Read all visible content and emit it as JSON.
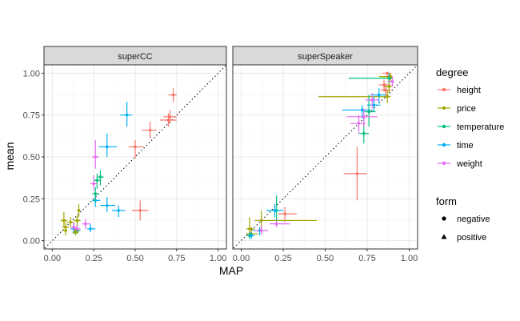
{
  "chart_data": {
    "type": "scatter",
    "xlabel": "MAP",
    "ylabel": "mean",
    "xlim": [
      0,
      1
    ],
    "ylim": [
      0,
      1
    ],
    "x_ticks": [
      "0.00",
      "0.25",
      "0.50",
      "0.75",
      "1.00"
    ],
    "y_ticks": [
      "0.00",
      "0.25",
      "0.50",
      "0.75",
      "1.00"
    ],
    "reference_line": "identity (dotted)",
    "grid": true,
    "legend_placement": "right",
    "legend_color_title": "degree",
    "legend_shape_title": "form",
    "shape_legend": [
      "negative",
      "positive"
    ],
    "series": [
      {
        "name": "height",
        "color": "#F8766D"
      },
      {
        "name": "price",
        "color": "#A3A500"
      },
      {
        "name": "temperature",
        "color": "#00BF7D"
      },
      {
        "name": "time",
        "color": "#00B0F6"
      },
      {
        "name": "weight",
        "color": "#E76BF3"
      }
    ],
    "panels": [
      {
        "title": "superCC",
        "points": [
          {
            "series": "height",
            "x": 0.73,
            "y": 0.87,
            "xerr": [
              0.7,
              0.75
            ],
            "yerr": [
              0.83,
              0.91
            ]
          },
          {
            "series": "height",
            "x": 0.71,
            "y": 0.74,
            "xerr": [
              0.67,
              0.75
            ],
            "yerr": [
              0.7,
              0.78
            ]
          },
          {
            "series": "height",
            "x": 0.7,
            "y": 0.72,
            "xerr": [
              0.65,
              0.75
            ],
            "yerr": [
              0.68,
              0.76
            ]
          },
          {
            "series": "height",
            "x": 0.59,
            "y": 0.66,
            "xerr": [
              0.54,
              0.63
            ],
            "yerr": [
              0.61,
              0.71
            ]
          },
          {
            "series": "height",
            "x": 0.5,
            "y": 0.56,
            "xerr": [
              0.46,
              0.55
            ],
            "yerr": [
              0.49,
              0.6
            ]
          },
          {
            "series": "height",
            "x": 0.53,
            "y": 0.18,
            "xerr": [
              0.48,
              0.58
            ],
            "yerr": [
              0.12,
              0.24
            ]
          },
          {
            "series": "time",
            "x": 0.45,
            "y": 0.75,
            "xerr": [
              0.41,
              0.48
            ],
            "yerr": [
              0.68,
              0.83
            ]
          },
          {
            "series": "time",
            "x": 0.33,
            "y": 0.56,
            "xerr": [
              0.28,
              0.39
            ],
            "yerr": [
              0.5,
              0.64
            ]
          },
          {
            "series": "time",
            "x": 0.33,
            "y": 0.21,
            "xerr": [
              0.29,
              0.38
            ],
            "yerr": [
              0.17,
              0.26
            ]
          },
          {
            "series": "time",
            "x": 0.4,
            "y": 0.18,
            "xerr": [
              0.36,
              0.44
            ],
            "yerr": [
              0.14,
              0.21
            ]
          },
          {
            "series": "time",
            "x": 0.26,
            "y": 0.24,
            "xerr": [
              0.24,
              0.29
            ],
            "yerr": [
              0.2,
              0.29
            ]
          },
          {
            "series": "time",
            "x": 0.23,
            "y": 0.07,
            "xerr": [
              0.21,
              0.26
            ],
            "yerr": [
              0.05,
              0.1
            ]
          },
          {
            "series": "time",
            "x": 0.13,
            "y": 0.07,
            "xerr": [
              0.11,
              0.16
            ],
            "yerr": [
              0.04,
              0.1
            ]
          },
          {
            "series": "temperature",
            "x": 0.29,
            "y": 0.38,
            "xerr": [
              0.27,
              0.31
            ],
            "yerr": [
              0.33,
              0.42
            ]
          },
          {
            "series": "temperature",
            "x": 0.27,
            "y": 0.36,
            "xerr": [
              0.25,
              0.29
            ],
            "yerr": [
              0.31,
              0.4
            ]
          },
          {
            "series": "temperature",
            "x": 0.26,
            "y": 0.28,
            "xerr": [
              0.24,
              0.28
            ],
            "yerr": [
              0.23,
              0.32
            ]
          },
          {
            "series": "temperature",
            "x": 0.15,
            "y": 0.06,
            "xerr": [
              0.13,
              0.17
            ],
            "yerr": [
              0.04,
              0.09
            ]
          },
          {
            "series": "weight",
            "x": 0.26,
            "y": 0.5,
            "xerr": [
              0.24,
              0.28
            ],
            "yerr": [
              0.43,
              0.6
            ]
          },
          {
            "series": "weight",
            "x": 0.25,
            "y": 0.34,
            "xerr": [
              0.23,
              0.27
            ],
            "yerr": [
              0.3,
              0.39
            ]
          },
          {
            "series": "weight",
            "x": 0.2,
            "y": 0.1,
            "xerr": [
              0.18,
              0.23
            ],
            "yerr": [
              0.07,
              0.13
            ]
          },
          {
            "series": "weight",
            "x": 0.13,
            "y": 0.08,
            "xerr": [
              0.11,
              0.15
            ],
            "yerr": [
              0.06,
              0.11
            ]
          },
          {
            "series": "weight",
            "x": 0.15,
            "y": 0.07,
            "xerr": [
              0.13,
              0.17
            ],
            "yerr": [
              0.05,
              0.09
            ]
          },
          {
            "series": "price",
            "x": 0.16,
            "y": 0.18,
            "xerr": [
              0.15,
              0.17
            ],
            "yerr": [
              0.14,
              0.22
            ]
          },
          {
            "series": "price",
            "x": 0.15,
            "y": 0.12,
            "xerr": [
              0.13,
              0.17
            ],
            "yerr": [
              0.09,
              0.15
            ]
          },
          {
            "series": "price",
            "x": 0.11,
            "y": 0.11,
            "xerr": [
              0.09,
              0.13
            ],
            "yerr": [
              0.08,
              0.14
            ]
          },
          {
            "series": "price",
            "x": 0.07,
            "y": 0.12,
            "xerr": [
              0.05,
              0.09
            ],
            "yerr": [
              0.08,
              0.17
            ]
          },
          {
            "series": "price",
            "x": 0.08,
            "y": 0.08,
            "xerr": [
              0.06,
              0.1
            ],
            "yerr": [
              0.05,
              0.11
            ]
          },
          {
            "series": "price",
            "x": 0.08,
            "y": 0.06,
            "xerr": [
              0.06,
              0.09
            ],
            "yerr": [
              0.03,
              0.08
            ]
          },
          {
            "series": "price",
            "x": 0.14,
            "y": 0.05,
            "xerr": [
              0.12,
              0.16
            ],
            "yerr": [
              0.03,
              0.07
            ]
          }
        ]
      },
      {
        "title": "superSpeaker",
        "points": [
          {
            "series": "height",
            "x": 0.87,
            "y": 1.0,
            "xerr": [
              0.84,
              0.89
            ],
            "yerr": [
              0.97,
              1.0
            ]
          },
          {
            "series": "height",
            "x": 0.88,
            "y": 0.97,
            "xerr": [
              0.84,
              0.9
            ],
            "yerr": [
              0.94,
              1.0
            ]
          },
          {
            "series": "height",
            "x": 0.85,
            "y": 0.93,
            "xerr": [
              0.82,
              0.89
            ],
            "yerr": [
              0.89,
              0.96
            ]
          },
          {
            "series": "height",
            "x": 0.86,
            "y": 0.9,
            "xerr": [
              0.83,
              0.89
            ],
            "yerr": [
              0.86,
              0.94
            ]
          },
          {
            "series": "height",
            "x": 0.69,
            "y": 0.4,
            "xerr": [
              0.61,
              0.75
            ],
            "yerr": [
              0.24,
              0.56
            ]
          },
          {
            "series": "height",
            "x": 0.26,
            "y": 0.16,
            "xerr": [
              0.22,
              0.33
            ],
            "yerr": [
              0.11,
              0.2
            ]
          },
          {
            "series": "price",
            "x": 0.89,
            "y": 0.98,
            "xerr": [
              0.82,
              0.9
            ],
            "yerr": [
              0.95,
              1.0
            ]
          },
          {
            "series": "price",
            "x": 0.88,
            "y": 0.92,
            "xerr": [
              0.85,
              0.9
            ],
            "yerr": [
              0.88,
              0.95
            ]
          },
          {
            "series": "price",
            "x": 0.87,
            "y": 0.86,
            "xerr": [
              0.46,
              0.89
            ],
            "yerr": [
              0.82,
              0.9
            ]
          },
          {
            "series": "price",
            "x": 0.12,
            "y": 0.12,
            "xerr": [
              0.08,
              0.45
            ],
            "yerr": [
              0.05,
              0.18
            ]
          },
          {
            "series": "price",
            "x": 0.05,
            "y": 0.07,
            "xerr": [
              0.03,
              0.08
            ],
            "yerr": [
              0.04,
              0.14
            ]
          },
          {
            "series": "price",
            "x": 0.06,
            "y": 0.04,
            "xerr": [
              0.03,
              0.1
            ],
            "yerr": [
              0.02,
              0.08
            ]
          },
          {
            "series": "temperature",
            "x": 0.88,
            "y": 0.97,
            "xerr": [
              0.64,
              0.9
            ],
            "yerr": [
              0.94,
              1.0
            ]
          },
          {
            "series": "temperature",
            "x": 0.76,
            "y": 0.77,
            "xerr": [
              0.73,
              0.8
            ],
            "yerr": [
              0.68,
              0.87
            ]
          },
          {
            "series": "temperature",
            "x": 0.73,
            "y": 0.64,
            "xerr": [
              0.7,
              0.76
            ],
            "yerr": [
              0.58,
              0.75
            ]
          },
          {
            "series": "temperature",
            "x": 0.21,
            "y": 0.18,
            "xerr": [
              0.18,
              0.23
            ],
            "yerr": [
              0.09,
              0.27
            ]
          },
          {
            "series": "temperature",
            "x": 0.05,
            "y": 0.03,
            "xerr": [
              0.03,
              0.07
            ],
            "yerr": [
              0.01,
              0.05
            ]
          },
          {
            "series": "time",
            "x": 0.82,
            "y": 0.87,
            "xerr": [
              0.77,
              0.86
            ],
            "yerr": [
              0.82,
              0.91
            ]
          },
          {
            "series": "time",
            "x": 0.79,
            "y": 0.81,
            "xerr": [
              0.75,
              0.83
            ],
            "yerr": [
              0.77,
              0.86
            ]
          },
          {
            "series": "time",
            "x": 0.72,
            "y": 0.78,
            "xerr": [
              0.6,
              0.77
            ],
            "yerr": [
              0.73,
              0.81
            ]
          },
          {
            "series": "time",
            "x": 0.2,
            "y": 0.18,
            "xerr": [
              0.15,
              0.25
            ],
            "yerr": [
              0.14,
              0.22
            ]
          },
          {
            "series": "time",
            "x": 0.11,
            "y": 0.06,
            "xerr": [
              0.07,
              0.14
            ],
            "yerr": [
              0.03,
              0.08
            ]
          },
          {
            "series": "time",
            "x": 0.06,
            "y": 0.03,
            "xerr": [
              0.04,
              0.08
            ],
            "yerr": [
              0.01,
              0.05
            ]
          },
          {
            "series": "weight",
            "x": 0.9,
            "y": 0.95,
            "xerr": [
              0.87,
              0.91
            ],
            "yerr": [
              0.92,
              0.98
            ]
          },
          {
            "series": "weight",
            "x": 0.78,
            "y": 0.84,
            "xerr": [
              0.74,
              0.82
            ],
            "yerr": [
              0.79,
              0.88
            ]
          },
          {
            "series": "weight",
            "x": 0.73,
            "y": 0.74,
            "xerr": [
              0.63,
              0.81
            ],
            "yerr": [
              0.68,
              0.79
            ]
          },
          {
            "series": "weight",
            "x": 0.7,
            "y": 0.7,
            "xerr": [
              0.65,
              0.74
            ],
            "yerr": [
              0.64,
              0.75
            ]
          },
          {
            "series": "weight",
            "x": 0.21,
            "y": 0.1,
            "xerr": [
              0.17,
              0.29
            ],
            "yerr": [
              0.08,
              0.12
            ]
          },
          {
            "series": "weight",
            "x": 0.12,
            "y": 0.06,
            "xerr": [
              0.08,
              0.16
            ],
            "yerr": [
              0.04,
              0.09
            ]
          }
        ]
      }
    ]
  }
}
